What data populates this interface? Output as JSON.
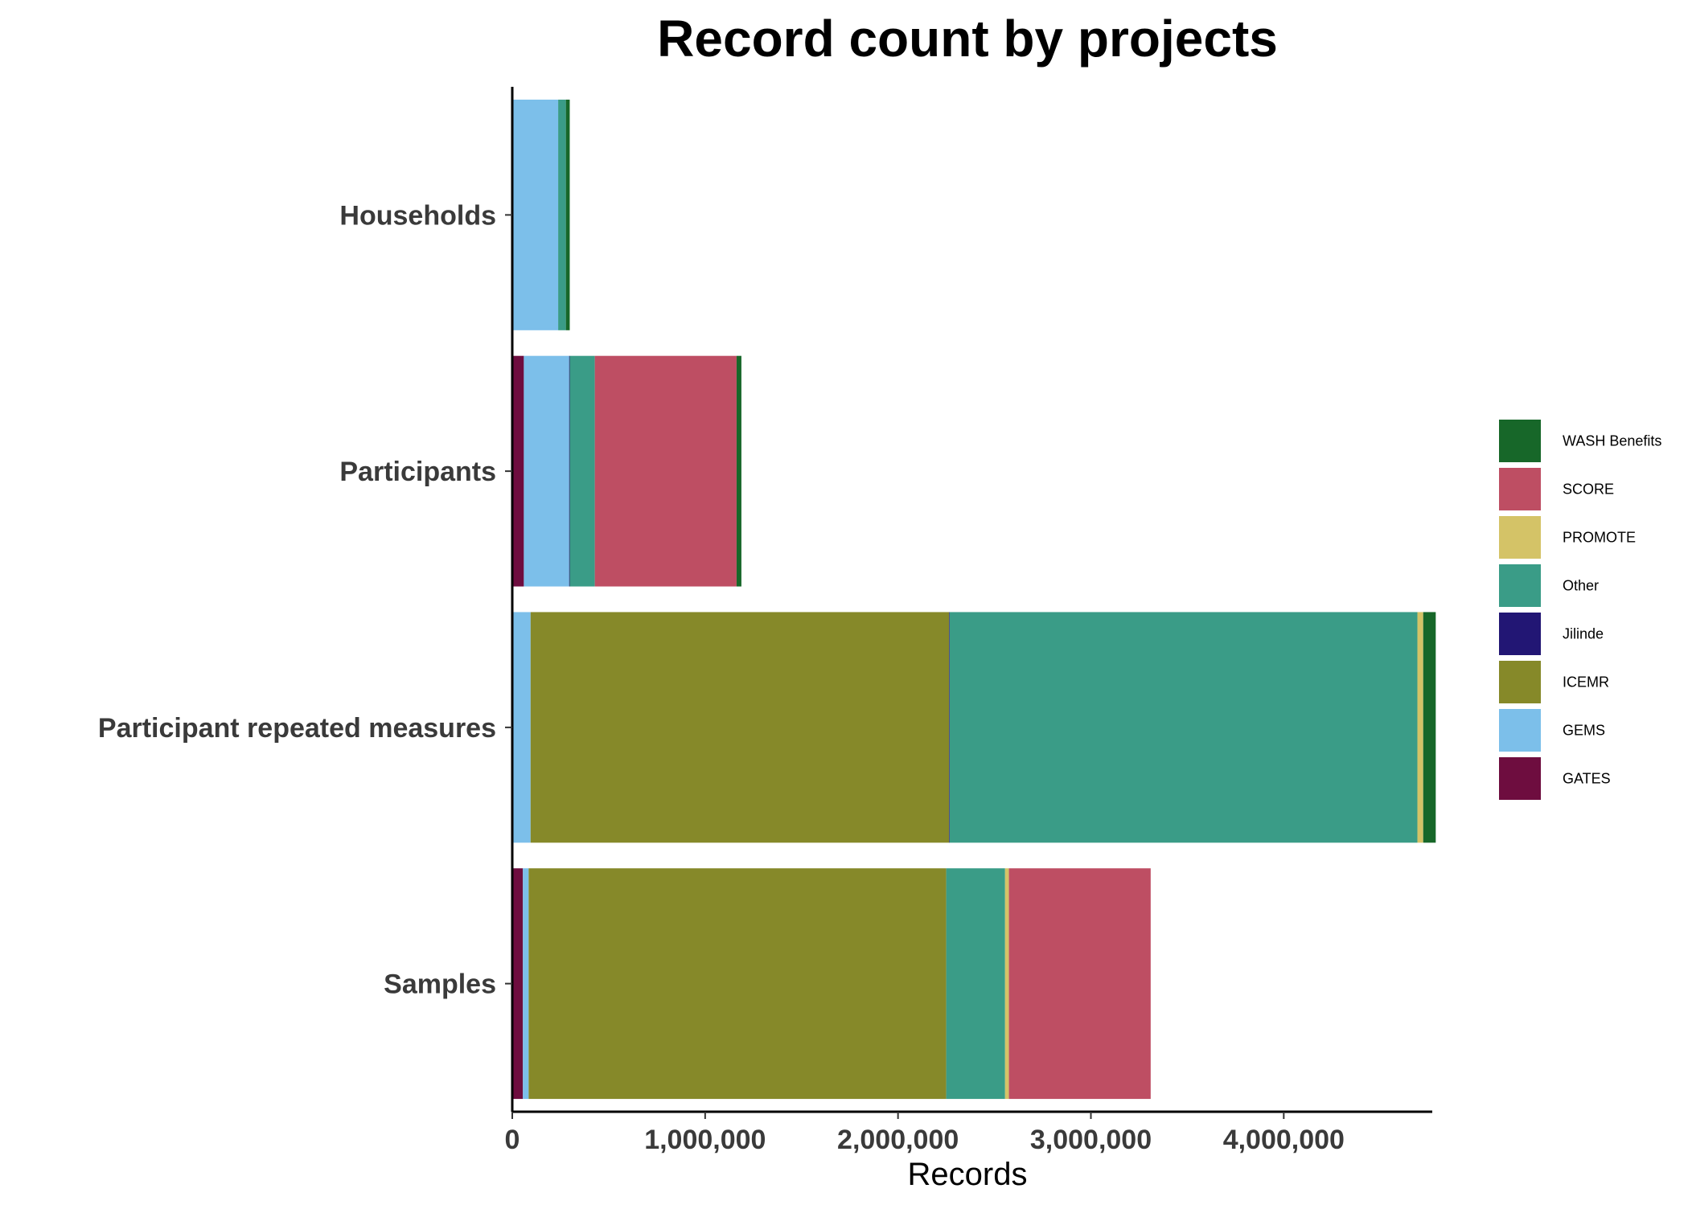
{
  "chart_data": {
    "type": "bar",
    "orientation": "horizontal",
    "stacked": true,
    "title": "Record count by projects",
    "xlabel": "Records",
    "ylabel": "",
    "xlim": [
      0,
      4770000
    ],
    "x_ticks": [
      0,
      1000000,
      2000000,
      3000000,
      4000000
    ],
    "x_tick_labels": [
      "0",
      "1,000,000",
      "2,000,000",
      "3,000,000",
      "4,000,000"
    ],
    "categories": [
      "Households",
      "Participants",
      "Participant repeated measures",
      "Samples"
    ],
    "grid": false,
    "legend_position": "right",
    "legend_order": [
      "WASH Benefits",
      "SCORE",
      "PROMOTE",
      "Other",
      "Jilinde",
      "ICEMR",
      "GEMS",
      "GATES"
    ],
    "series": [
      {
        "name": "GATES",
        "color": "#6e0d3f",
        "values": [
          0,
          60000,
          0,
          55000
        ]
      },
      {
        "name": "GEMS",
        "color": "#7cbfea",
        "values": [
          238000,
          235000,
          95000,
          30000
        ]
      },
      {
        "name": "ICEMR",
        "color": "#868929",
        "values": [
          0,
          0,
          2170000,
          2165000
        ]
      },
      {
        "name": "Jilinde",
        "color": "#221674",
        "values": [
          0,
          3000,
          3000,
          0
        ]
      },
      {
        "name": "Other",
        "color": "#3a9c87",
        "values": [
          40000,
          130000,
          2425000,
          305000
        ]
      },
      {
        "name": "PROMOTE",
        "color": "#d4c367",
        "values": [
          0,
          0,
          30000,
          20000
        ]
      },
      {
        "name": "SCORE",
        "color": "#be4e63",
        "values": [
          0,
          735000,
          0,
          735000
        ]
      },
      {
        "name": "WASH Benefits",
        "color": "#176729",
        "values": [
          20000,
          25000,
          65000,
          0
        ]
      }
    ]
  }
}
